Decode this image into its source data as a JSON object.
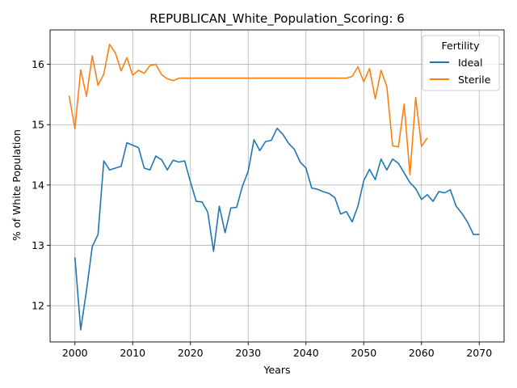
{
  "chart_data": {
    "type": "line",
    "title": "REPUBLICAN_White_Population_Scoring: 6",
    "xlabel": "Years",
    "ylabel": "% of White Population",
    "xlim": [
      1995.7,
      2074.3
    ],
    "ylim": [
      11.4,
      16.57
    ],
    "xticks": [
      2000,
      2010,
      2020,
      2030,
      2040,
      2050,
      2060,
      2070
    ],
    "yticks": [
      12,
      13,
      14,
      15,
      16
    ],
    "grid": true,
    "legend": {
      "title": "Fertility",
      "placement": "top-right"
    },
    "series": [
      {
        "name": "Ideal",
        "color": "#1f77b4",
        "x": [
          2000,
          2001,
          2002,
          2003,
          2004,
          2005,
          2006,
          2007,
          2008,
          2009,
          2010,
          2011,
          2012,
          2013,
          2014,
          2015,
          2016,
          2017,
          2018,
          2019,
          2020,
          2021,
          2022,
          2023,
          2024,
          2025,
          2026,
          2027,
          2028,
          2029,
          2030,
          2031,
          2032,
          2033,
          2034,
          2035,
          2036,
          2037,
          2038,
          2039,
          2040,
          2041,
          2042,
          2043,
          2044,
          2045,
          2046,
          2047,
          2048,
          2049,
          2050,
          2051,
          2052,
          2053,
          2054,
          2055,
          2056,
          2057,
          2058,
          2059,
          2060,
          2061,
          2062,
          2063,
          2064,
          2065,
          2066,
          2067,
          2068,
          2069,
          2070
        ],
        "y": [
          12.8,
          11.6,
          12.25,
          12.98,
          13.18,
          14.4,
          14.25,
          14.28,
          14.31,
          14.7,
          14.66,
          14.62,
          14.28,
          14.25,
          14.48,
          14.42,
          14.25,
          14.41,
          14.38,
          14.4,
          14.05,
          13.73,
          13.72,
          13.55,
          12.9,
          13.65,
          13.21,
          13.62,
          13.63,
          13.98,
          14.23,
          14.75,
          14.57,
          14.72,
          14.74,
          14.94,
          14.84,
          14.69,
          14.59,
          14.38,
          14.28,
          13.95,
          13.93,
          13.89,
          13.86,
          13.79,
          13.52,
          13.56,
          13.39,
          13.65,
          14.07,
          14.26,
          14.09,
          14.43,
          14.25,
          14.43,
          14.36,
          14.2,
          14.04,
          13.94,
          13.76,
          13.84,
          13.73,
          13.89,
          13.87,
          13.92,
          13.65,
          13.53,
          13.38,
          13.18,
          13.18
        ]
      },
      {
        "name": "Sterile",
        "color": "#ff7f0e",
        "x": [
          1999,
          2000,
          2001,
          2002,
          2003,
          2004,
          2005,
          2006,
          2007,
          2008,
          2009,
          2010,
          2011,
          2012,
          2013,
          2014,
          2015,
          2016,
          2017,
          2018,
          2019,
          2020,
          2021,
          2022,
          2023,
          2024,
          2025,
          2026,
          2027,
          2028,
          2029,
          2030,
          2031,
          2032,
          2033,
          2034,
          2035,
          2036,
          2037,
          2038,
          2039,
          2040,
          2041,
          2042,
          2043,
          2044,
          2045,
          2046,
          2047,
          2048,
          2049,
          2050,
          2051,
          2052,
          2053,
          2054,
          2055,
          2056,
          2057,
          2058,
          2059,
          2060,
          2061
        ],
        "y": [
          15.48,
          14.93,
          15.91,
          15.47,
          16.14,
          15.65,
          15.84,
          16.33,
          16.19,
          15.89,
          16.11,
          15.82,
          15.9,
          15.85,
          15.98,
          16.0,
          15.83,
          15.76,
          15.73,
          15.77,
          15.77,
          15.77,
          15.77,
          15.77,
          15.77,
          15.77,
          15.77,
          15.77,
          15.77,
          15.77,
          15.77,
          15.77,
          15.77,
          15.77,
          15.77,
          15.77,
          15.77,
          15.77,
          15.77,
          15.77,
          15.77,
          15.77,
          15.77,
          15.77,
          15.77,
          15.77,
          15.77,
          15.77,
          15.77,
          15.8,
          15.96,
          15.71,
          15.93,
          15.43,
          15.9,
          15.63,
          14.65,
          14.63,
          15.34,
          14.17,
          15.45,
          14.64,
          14.78
        ]
      }
    ]
  }
}
